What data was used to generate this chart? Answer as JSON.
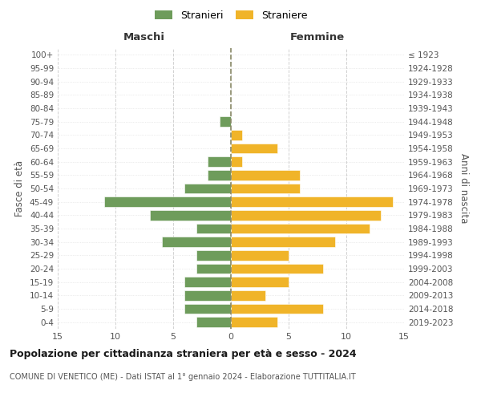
{
  "age_groups": [
    "0-4",
    "5-9",
    "10-14",
    "15-19",
    "20-24",
    "25-29",
    "30-34",
    "35-39",
    "40-44",
    "45-49",
    "50-54",
    "55-59",
    "60-64",
    "65-69",
    "70-74",
    "75-79",
    "80-84",
    "85-89",
    "90-94",
    "95-99",
    "100+"
  ],
  "birth_years": [
    "2019-2023",
    "2014-2018",
    "2009-2013",
    "2004-2008",
    "1999-2003",
    "1994-1998",
    "1989-1993",
    "1984-1988",
    "1979-1983",
    "1974-1978",
    "1969-1973",
    "1964-1968",
    "1959-1963",
    "1954-1958",
    "1949-1953",
    "1944-1948",
    "1939-1943",
    "1934-1938",
    "1929-1933",
    "1924-1928",
    "≤ 1923"
  ],
  "males": [
    3,
    4,
    4,
    4,
    3,
    3,
    6,
    3,
    7,
    11,
    4,
    2,
    2,
    0,
    0,
    1,
    0,
    0,
    0,
    0,
    0
  ],
  "females": [
    4,
    8,
    3,
    5,
    8,
    5,
    9,
    12,
    13,
    14,
    6,
    6,
    1,
    4,
    1,
    0,
    0,
    0,
    0,
    0,
    0
  ],
  "male_color": "#6e9c5b",
  "female_color": "#f0b429",
  "grid_color": "#cccccc",
  "center_line_color": "#888866",
  "xlim": 15,
  "xlabel_left": "Maschi",
  "xlabel_right": "Femmine",
  "ylabel": "Fasce di età",
  "ylabel_right": "Anni di nascita",
  "legend_male": "Stranieri",
  "legend_female": "Straniere",
  "title": "Popolazione per cittadinanza straniera per età e sesso - 2024",
  "subtitle": "COMUNE DI VENETICO (ME) - Dati ISTAT al 1° gennaio 2024 - Elaborazione TUTTITALIA.IT",
  "bg_color": "#ffffff"
}
